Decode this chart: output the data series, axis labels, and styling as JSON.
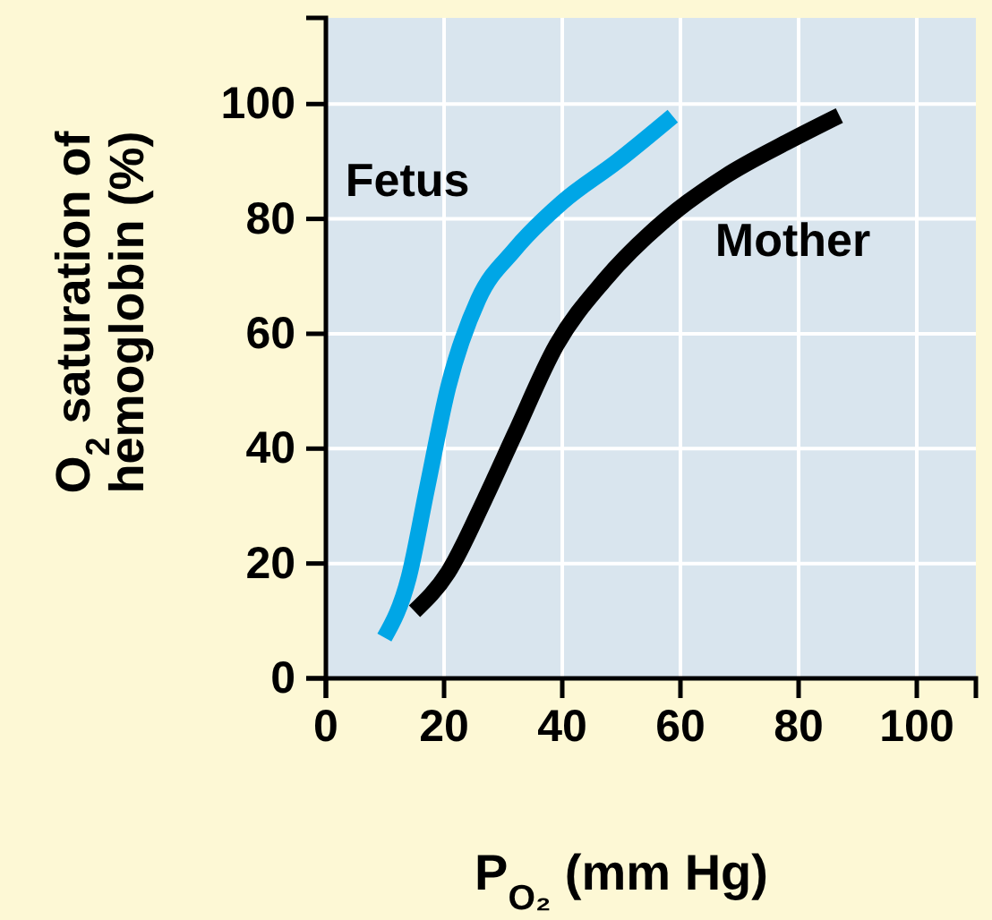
{
  "chart_data": {
    "type": "line",
    "xlabel": "P$_{O₂}$ (mm Hg)",
    "ylabel": "O$_{2}$ saturation of hemoglobin (%)",
    "xlim": [
      0,
      110
    ],
    "ylim": [
      0,
      115
    ],
    "xticks": [
      0,
      20,
      40,
      60,
      80,
      100
    ],
    "yticks": [
      0,
      20,
      40,
      60,
      80,
      100
    ],
    "grid": true,
    "legend": false,
    "series": [
      {
        "name": "Fetus",
        "color": "#00a6e6",
        "x": [
          9.9,
          14,
          17.1,
          20.7,
          25.8,
          31.9,
          40,
          49.3,
          58.7
        ],
        "values": [
          7.1,
          17.5,
          33,
          50.7,
          66,
          74.6,
          82.9,
          90,
          97.9
        ]
      },
      {
        "name": "Mother",
        "color": "#000000",
        "x": [
          15,
          20.7,
          26.8,
          31.9,
          39,
          47.2,
          57.4,
          67.7,
          77.9,
          86.9
        ],
        "values": [
          11.7,
          18.5,
          31,
          42.4,
          58,
          69.4,
          79.8,
          87.5,
          93.3,
          98
        ]
      }
    ]
  }
}
